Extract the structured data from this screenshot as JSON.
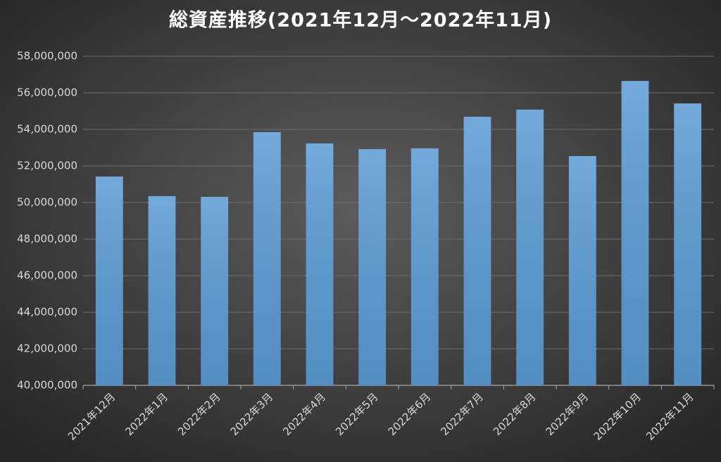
{
  "chart_data": {
    "type": "bar",
    "title": "総資産推移(2021年12月～2022年11月)",
    "categories": [
      "2021年12月",
      "2022年1月",
      "2022年2月",
      "2022年3月",
      "2022年4月",
      "2022年5月",
      "2022年6月",
      "2022年7月",
      "2022年8月",
      "2022年9月",
      "2022年10月",
      "2022年11月"
    ],
    "values": [
      51420000,
      50350000,
      50310000,
      53850000,
      53230000,
      52920000,
      52960000,
      54690000,
      55080000,
      52540000,
      56650000,
      55420000
    ],
    "color": "#5b9bd5",
    "ylim": [
      40000000,
      58000000
    ],
    "yticks": [
      {
        "value": 40000000,
        "label": "40,000,000"
      },
      {
        "value": 42000000,
        "label": "42,000,000"
      },
      {
        "value": 44000000,
        "label": "44,000,000"
      },
      {
        "value": 46000000,
        "label": "46,000,000"
      },
      {
        "value": 48000000,
        "label": "48,000,000"
      },
      {
        "value": 50000000,
        "label": "50,000,000"
      },
      {
        "value": 52000000,
        "label": "52,000,000"
      },
      {
        "value": 54000000,
        "label": "54,000,000"
      },
      {
        "value": 56000000,
        "label": "56,000,000"
      },
      {
        "value": 58000000,
        "label": "58,000,000"
      }
    ],
    "grid": true
  }
}
